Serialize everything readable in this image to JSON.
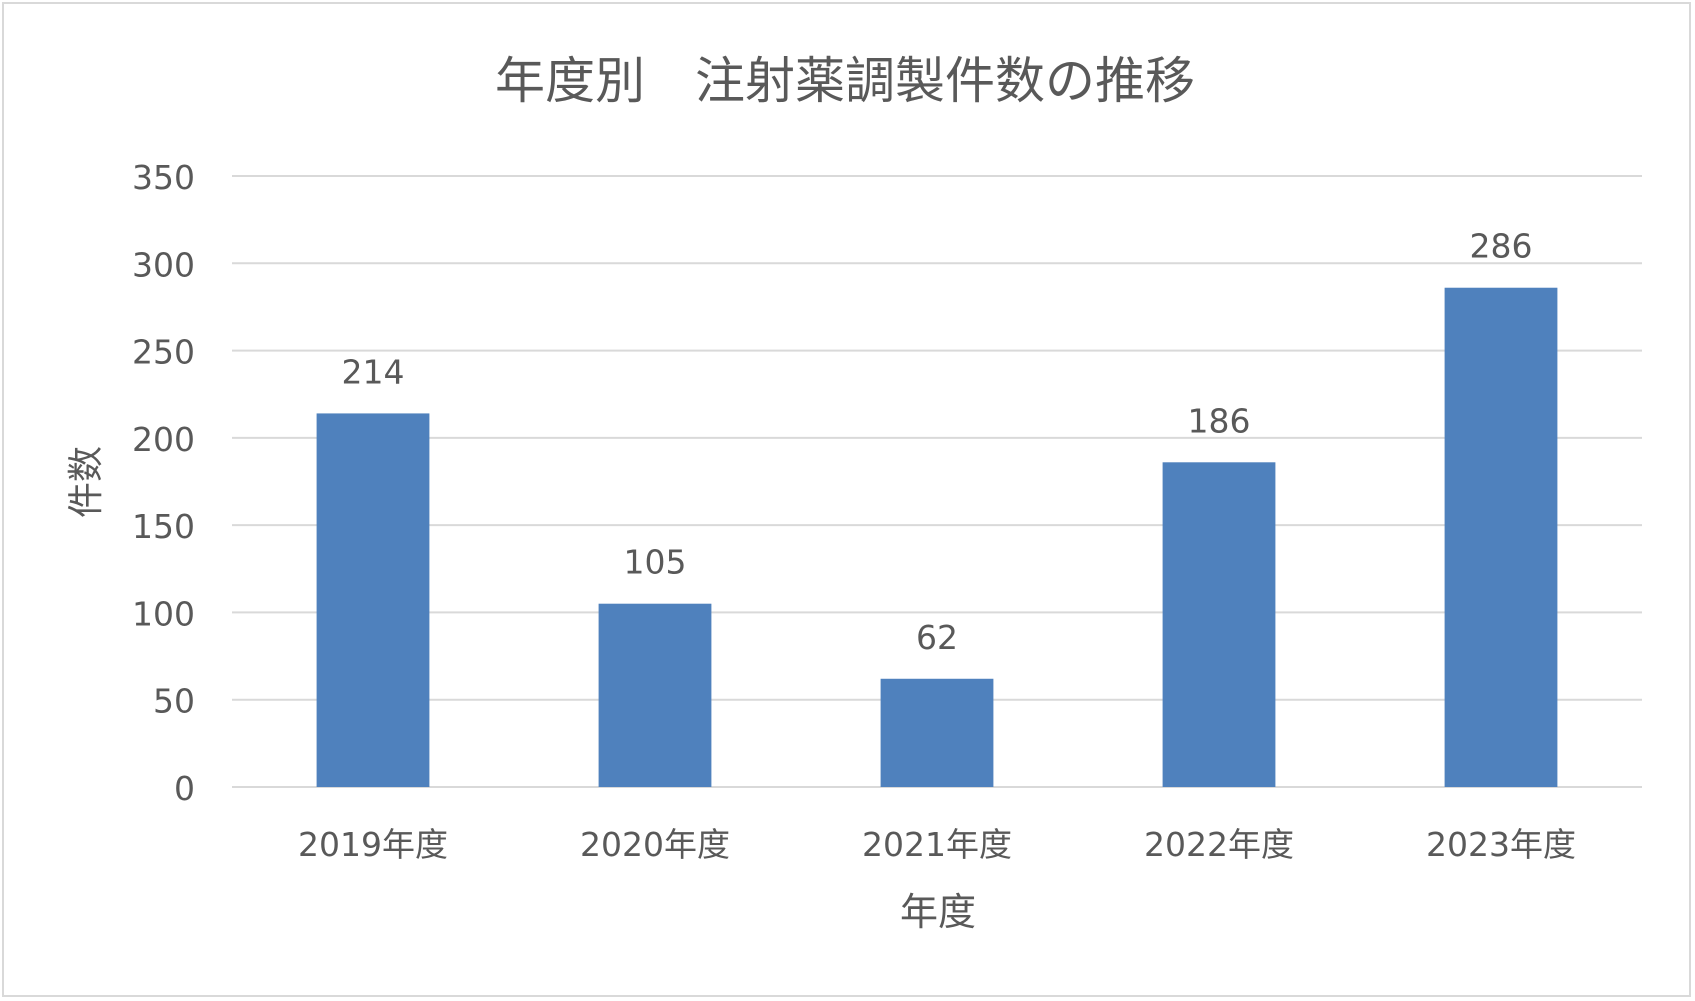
{
  "chart_data": {
    "type": "bar",
    "title": "年度別　注射薬調製件数の推移",
    "xlabel": "年度",
    "ylabel": "件数",
    "categories": [
      "2019年度",
      "2020年度",
      "2021年度",
      "2022年度",
      "2023年度"
    ],
    "values": [
      214,
      105,
      62,
      186,
      286
    ],
    "ylim": [
      0,
      350
    ],
    "yticks": [
      0,
      50,
      100,
      150,
      200,
      250,
      300,
      350
    ],
    "grid": true,
    "data_labels": true,
    "legend": "none",
    "colors": {
      "bar": "#4f81bd",
      "grid": "#d9d9d9",
      "text": "#595959",
      "title": "#595959",
      "frame": "#d9d9d9"
    }
  }
}
